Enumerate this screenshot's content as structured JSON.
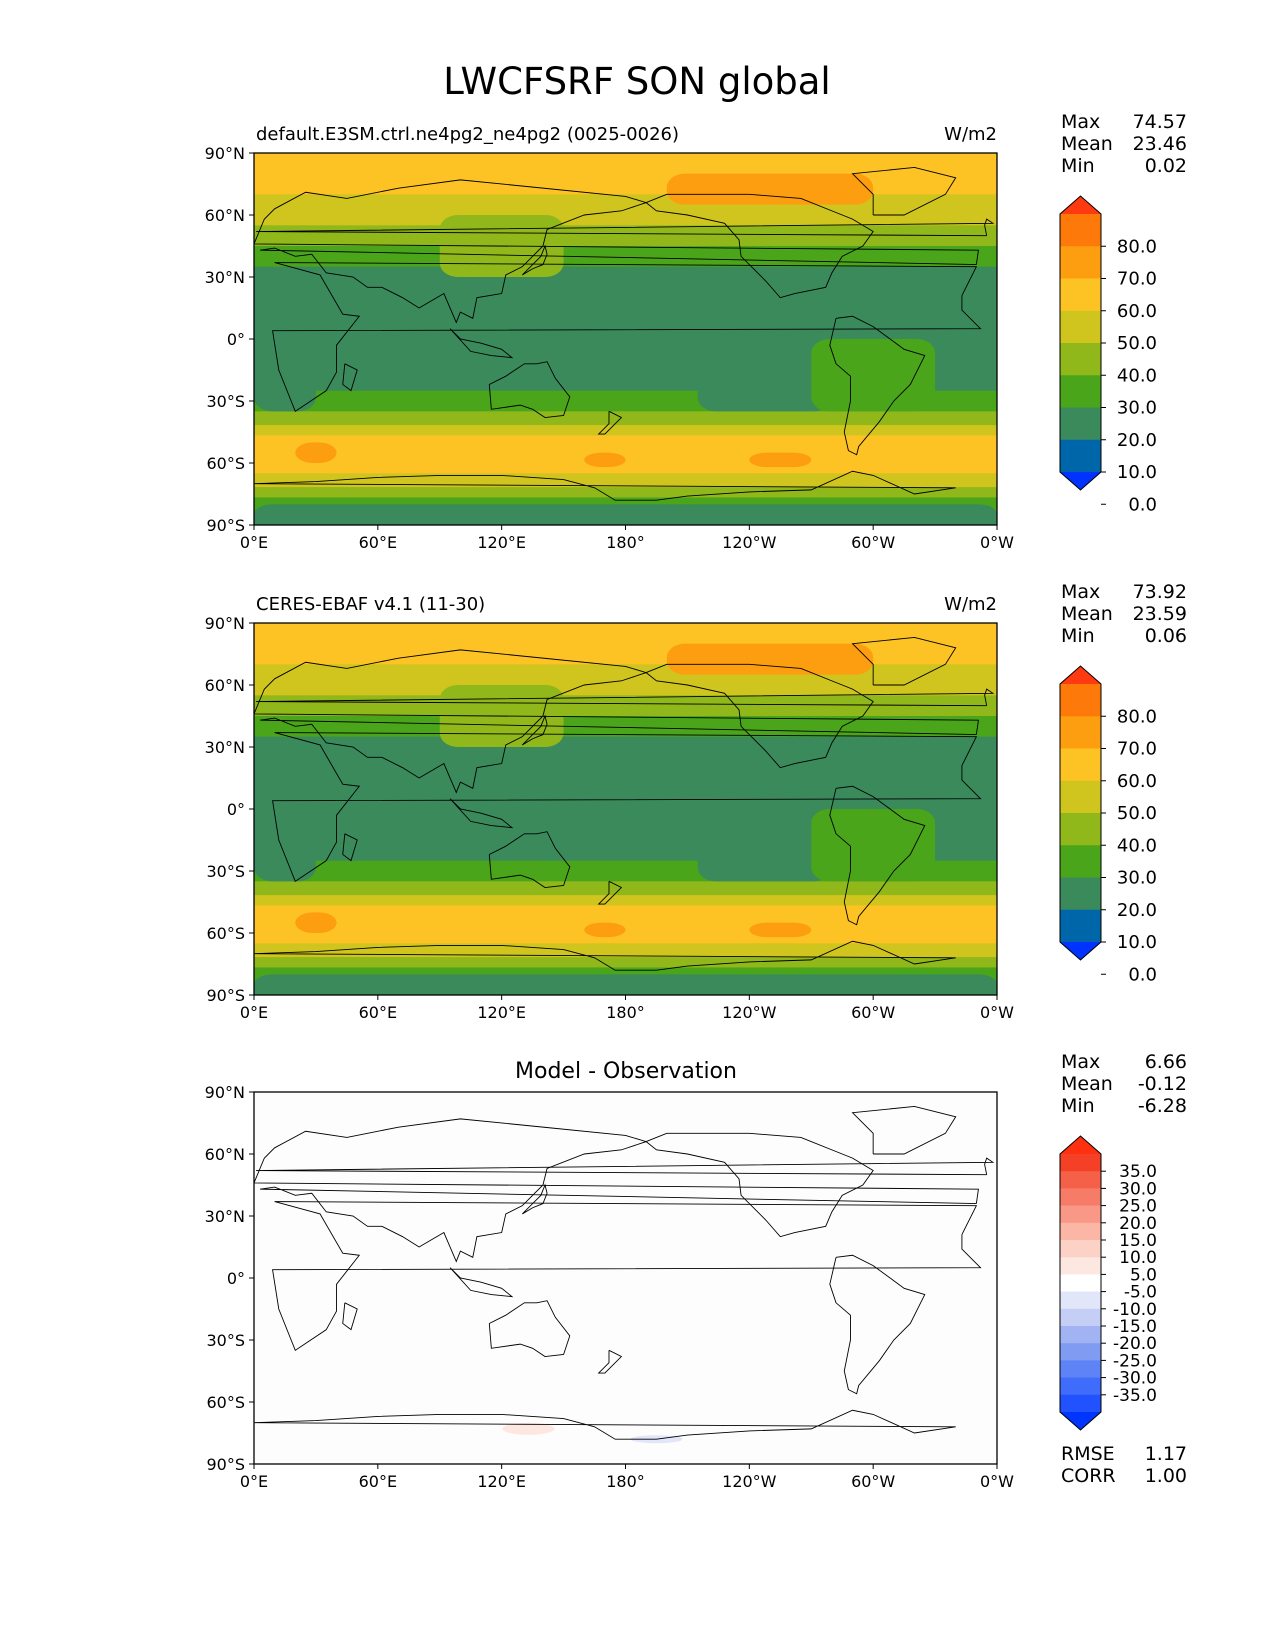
{
  "figure": {
    "title": "LWCFSRF SON global"
  },
  "colors": {
    "test_levels": [
      "#0033ff",
      "#0066aa",
      "#3a8a5c",
      "#4aa51a",
      "#90b81a",
      "#cfc51e",
      "#fdc325",
      "#fd9d10",
      "#fd7a0a",
      "#ff3a10"
    ],
    "diff_levels": [
      "#0034ff",
      "#2152fe",
      "#3f6cfb",
      "#5d83f6",
      "#7f9cf2",
      "#a1b3f3",
      "#c5cff5",
      "#e1e6f8",
      "#ffffff",
      "#fde7e1",
      "#fcd2c7",
      "#fbb6a6",
      "#f99886",
      "#f77c67",
      "#f56048",
      "#f44026",
      "#ff3010"
    ]
  },
  "chart_data": [
    {
      "type": "heatmap",
      "panel": "test",
      "title_left": "default.E3SM.ctrl.ne4pg2_ne4pg2 (0025-0026)",
      "title_right": "W/m2",
      "stats": [
        {
          "label": "Max",
          "value": "74.57"
        },
        {
          "label": "Mean",
          "value": "23.46"
        },
        {
          "label": "Min",
          "value": "0.02"
        }
      ],
      "colorbar_ticks": [
        "80.0",
        "70.0",
        "60.0",
        "50.0",
        "40.0",
        "30.0",
        "20.0",
        "10.0",
        "0.0"
      ],
      "x_ticks": [
        "0°E",
        "60°E",
        "120°E",
        "180°",
        "120°W",
        "60°W",
        "0°W"
      ],
      "y_ticks": [
        "90°N",
        "60°N",
        "30°N",
        "0°",
        "30°S",
        "60°S",
        "90°S"
      ],
      "zonal_levels_by_latitude": [
        {
          "lat": 90,
          "value": 55
        },
        {
          "lat": 75,
          "value": 52
        },
        {
          "lat": 60,
          "value": 44
        },
        {
          "lat": 45,
          "value": 31
        },
        {
          "lat": 30,
          "value": 14
        },
        {
          "lat": 15,
          "value": 14
        },
        {
          "lat": 0,
          "value": 20
        },
        {
          "lat": -15,
          "value": 14
        },
        {
          "lat": -30,
          "value": 24
        },
        {
          "lat": -40,
          "value": 38
        },
        {
          "lat": -50,
          "value": 55
        },
        {
          "lat": -60,
          "value": 58
        },
        {
          "lat": -70,
          "value": 42
        },
        {
          "lat": -80,
          "value": 24
        },
        {
          "lat": -90,
          "value": 16
        }
      ]
    },
    {
      "type": "heatmap",
      "panel": "reference",
      "title_left": "CERES-EBAF v4.1 (11-30)",
      "title_right": "W/m2",
      "stats": [
        {
          "label": "Max",
          "value": "73.92"
        },
        {
          "label": "Mean",
          "value": "23.59"
        },
        {
          "label": "Min",
          "value": "0.06"
        }
      ],
      "colorbar_ticks": [
        "80.0",
        "70.0",
        "60.0",
        "50.0",
        "40.0",
        "30.0",
        "20.0",
        "10.0",
        "0.0"
      ],
      "x_ticks": [
        "0°E",
        "60°E",
        "120°E",
        "180°",
        "120°W",
        "60°W",
        "0°W"
      ],
      "y_ticks": [
        "90°N",
        "60°N",
        "30°N",
        "0°",
        "30°S",
        "60°S",
        "90°S"
      ],
      "zonal_levels_by_latitude": [
        {
          "lat": 90,
          "value": 55
        },
        {
          "lat": 75,
          "value": 52
        },
        {
          "lat": 60,
          "value": 44
        },
        {
          "lat": 45,
          "value": 31
        },
        {
          "lat": 30,
          "value": 14
        },
        {
          "lat": 15,
          "value": 14
        },
        {
          "lat": 0,
          "value": 20
        },
        {
          "lat": -15,
          "value": 14
        },
        {
          "lat": -30,
          "value": 24
        },
        {
          "lat": -40,
          "value": 38
        },
        {
          "lat": -50,
          "value": 55
        },
        {
          "lat": -60,
          "value": 58
        },
        {
          "lat": -70,
          "value": 42
        },
        {
          "lat": -80,
          "value": 24
        },
        {
          "lat": -90,
          "value": 16
        }
      ]
    },
    {
      "type": "heatmap",
      "panel": "difference",
      "title_center": "Model - Observation",
      "stats": [
        {
          "label": "Max",
          "value": "6.66"
        },
        {
          "label": "Mean",
          "value": "-0.12"
        },
        {
          "label": "Min",
          "value": "-6.28"
        }
      ],
      "colorbar_ticks": [
        "35.0",
        "30.0",
        "25.0",
        "20.0",
        "15.0",
        "10.0",
        "5.0",
        "-5.0",
        "-10.0",
        "-15.0",
        "-20.0",
        "-25.0",
        "-30.0",
        "-35.0"
      ],
      "x_ticks": [
        "0°E",
        "60°E",
        "120°E",
        "180°",
        "120°W",
        "60°W",
        "0°W"
      ],
      "y_ticks": [
        "90°N",
        "60°N",
        "30°N",
        "0°",
        "30°S",
        "60°S",
        "90°S"
      ],
      "bottom_stats": [
        {
          "label": "RMSE",
          "value": "1.17"
        },
        {
          "label": "CORR",
          "value": "1.00"
        }
      ]
    }
  ]
}
